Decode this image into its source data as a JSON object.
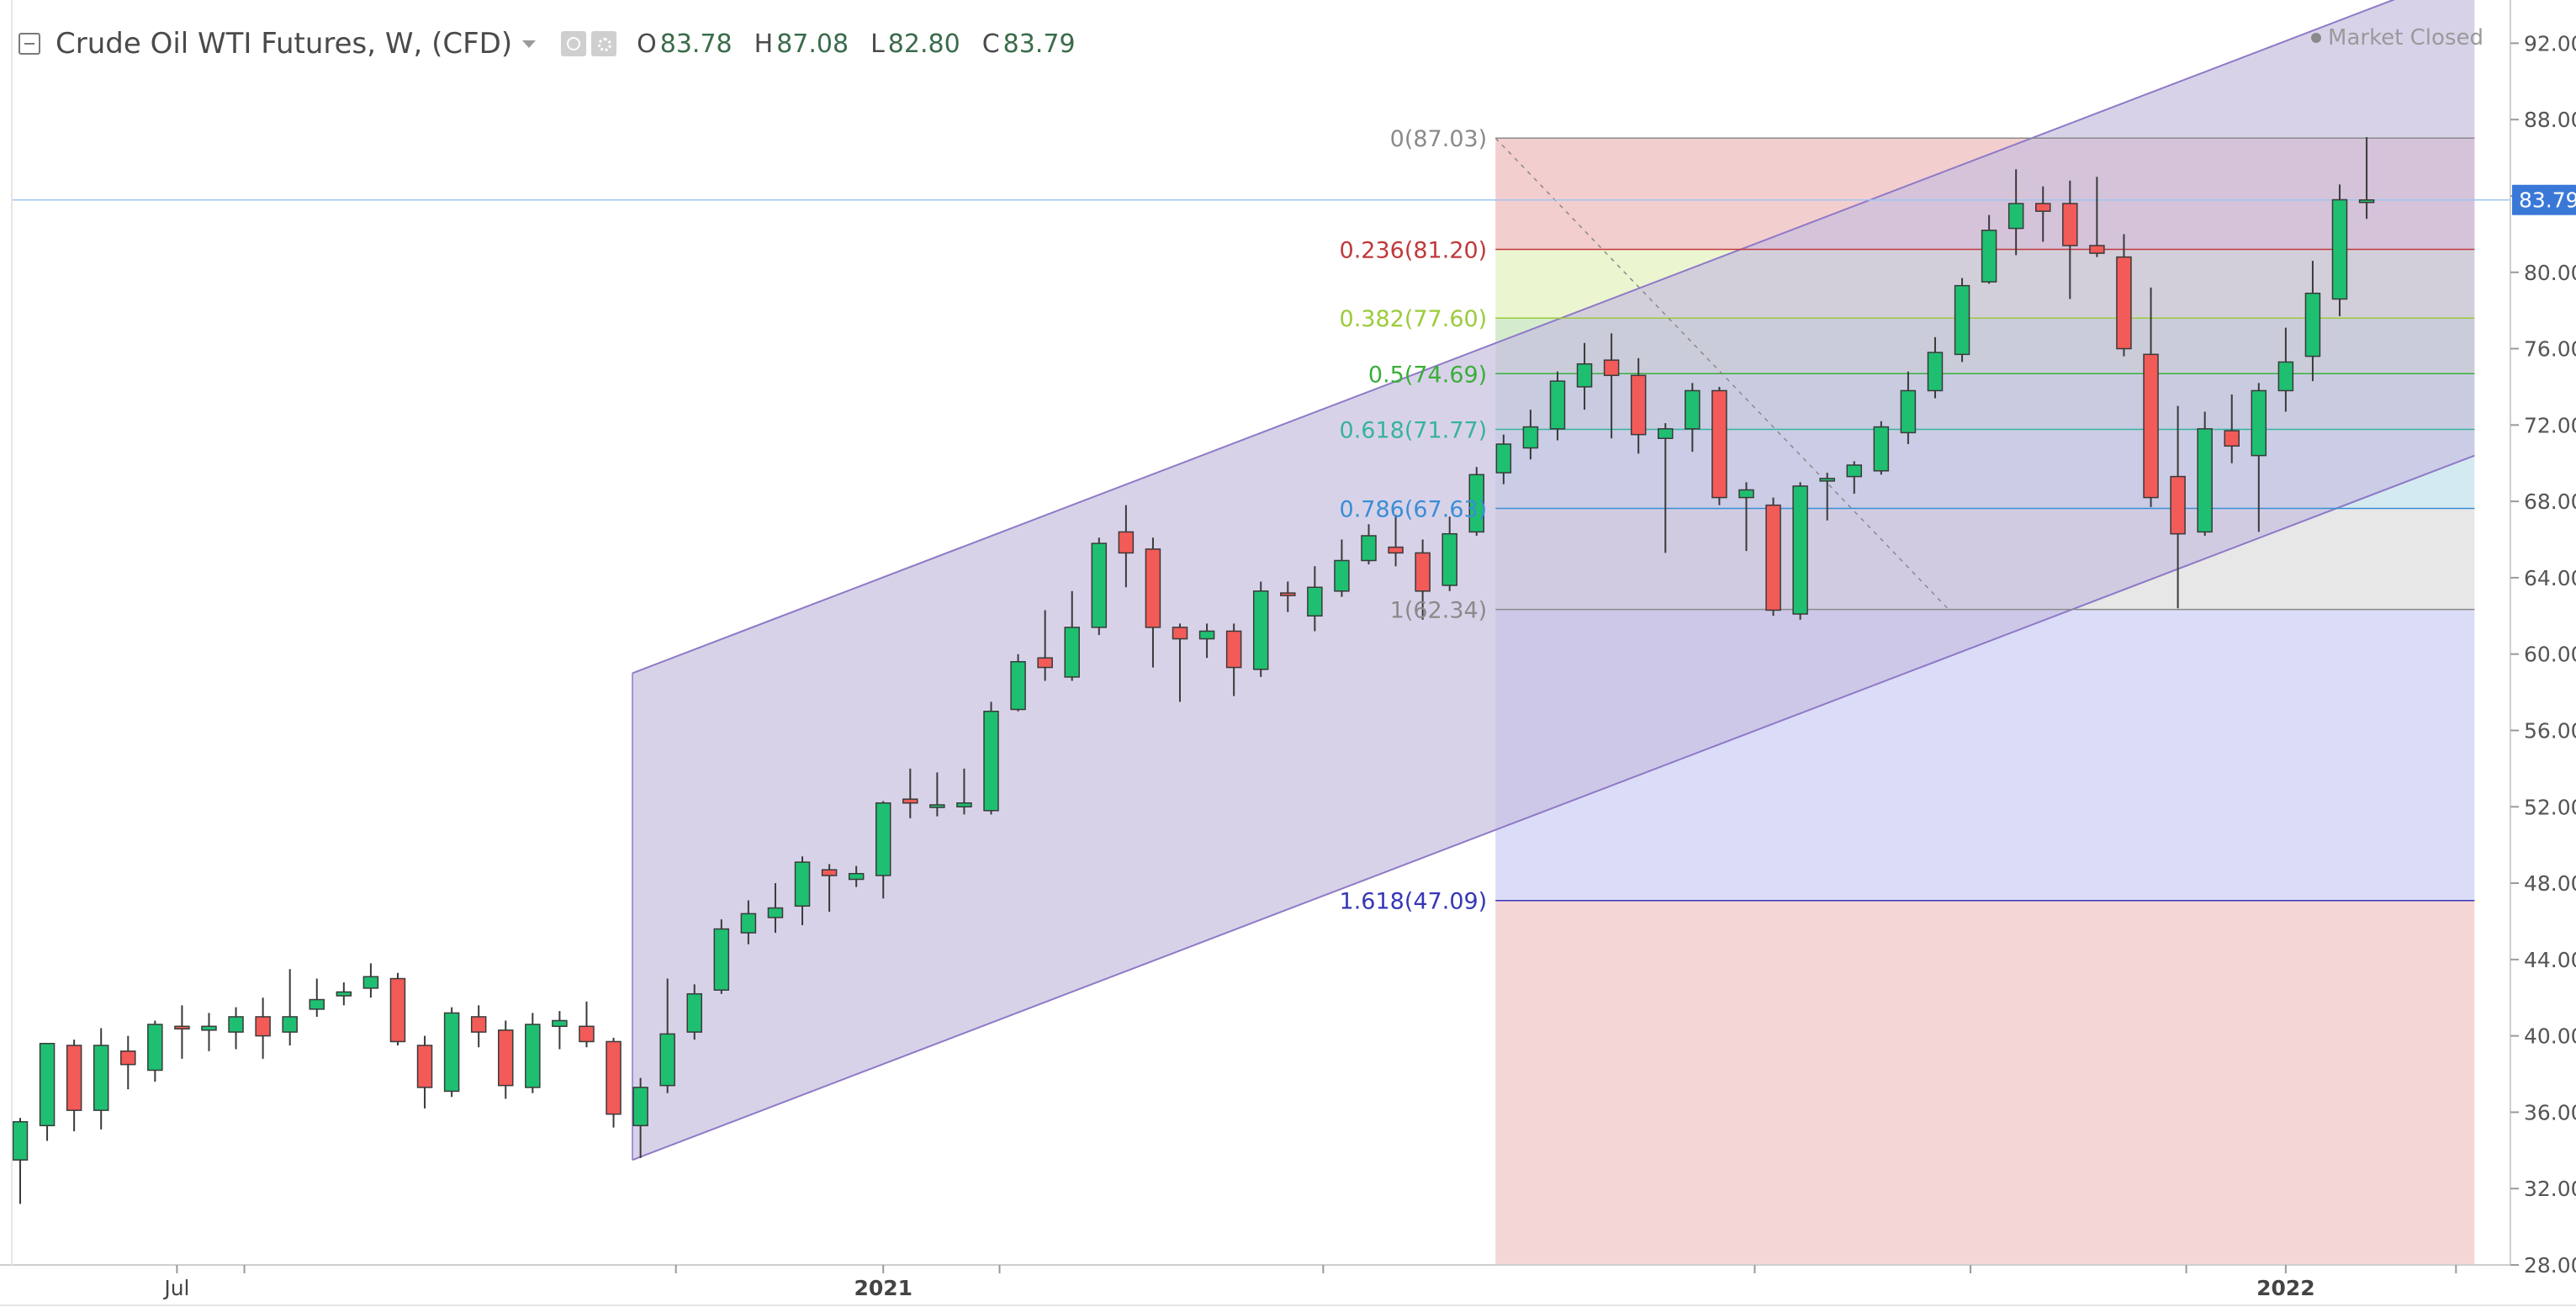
{
  "header": {
    "title": "Crude Oil WTI Futures, W, (CFD)",
    "icons": [
      "eye-icon",
      "gear-icon"
    ],
    "ohlc": [
      {
        "key": "O",
        "value": "83.78"
      },
      {
        "key": "H",
        "value": "87.08"
      },
      {
        "key": "L",
        "value": "82.80"
      },
      {
        "key": "C",
        "value": "83.79"
      }
    ],
    "status": "Market Closed"
  },
  "chart_data": {
    "type": "candlestick",
    "interval": "weekly",
    "ylim": [
      28,
      94
    ],
    "y_ticks": [
      "92.00",
      "88.00",
      "84.00",
      "80.00",
      "76.00",
      "72.00",
      "68.00",
      "64.00",
      "60.00",
      "56.00",
      "52.00",
      "48.00",
      "44.00",
      "40.00",
      "36.00",
      "32.00",
      "28.00"
    ],
    "y_tick_values": [
      92,
      88,
      84,
      80,
      76,
      72,
      68,
      64,
      60,
      56,
      52,
      48,
      44,
      40,
      36,
      32,
      28
    ],
    "x_labels": [
      {
        "label": "Jul",
        "bar": 6
      },
      {
        "label": "2021",
        "bar": 32
      },
      {
        "label": "2022",
        "bar": 84
      }
    ],
    "last_price": {
      "label": "83.79",
      "value": 83.79
    },
    "candles": [
      [
        33.5,
        35.5,
        31.2,
        35.7
      ],
      [
        35.3,
        39.6,
        34.5,
        39.5
      ],
      [
        39.5,
        36.1,
        35.0,
        39.8
      ],
      [
        36.1,
        39.5,
        35.1,
        40.4
      ],
      [
        39.2,
        38.5,
        37.2,
        40.0
      ],
      [
        38.2,
        40.6,
        37.6,
        40.8
      ],
      [
        40.5,
        40.4,
        38.8,
        41.6
      ],
      [
        40.3,
        40.5,
        39.2,
        41.2
      ],
      [
        40.2,
        41.0,
        39.3,
        41.5
      ],
      [
        41.0,
        40.0,
        38.8,
        42.0
      ],
      [
        40.2,
        41.0,
        39.5,
        43.5
      ],
      [
        41.4,
        41.9,
        41.0,
        43.0
      ],
      [
        42.1,
        42.3,
        41.6,
        42.8
      ],
      [
        42.5,
        43.1,
        42.0,
        43.8
      ],
      [
        43.0,
        39.7,
        39.5,
        43.3
      ],
      [
        39.5,
        37.3,
        36.2,
        40.0
      ],
      [
        37.1,
        41.2,
        36.8,
        41.5
      ],
      [
        41.0,
        40.2,
        39.4,
        41.6
      ],
      [
        40.3,
        37.4,
        36.7,
        40.8
      ],
      [
        37.3,
        40.6,
        37.0,
        41.2
      ],
      [
        40.5,
        40.8,
        39.3,
        41.3
      ],
      [
        40.5,
        39.7,
        39.4,
        41.8
      ],
      [
        39.7,
        35.9,
        35.2,
        39.9
      ],
      [
        35.3,
        37.3,
        33.6,
        37.8
      ],
      [
        37.4,
        40.1,
        37.0,
        43.0
      ],
      [
        40.2,
        42.2,
        39.8,
        42.7
      ],
      [
        42.4,
        45.6,
        42.2,
        46.1
      ],
      [
        45.4,
        46.4,
        44.8,
        47.1
      ],
      [
        46.2,
        46.7,
        45.4,
        48.0
      ],
      [
        46.8,
        49.1,
        45.8,
        49.4
      ],
      [
        48.7,
        48.4,
        46.5,
        49.0
      ],
      [
        48.2,
        48.5,
        47.8,
        48.9
      ],
      [
        48.4,
        52.2,
        47.2,
        52.3
      ],
      [
        52.4,
        52.2,
        51.4,
        54.0
      ],
      [
        52.0,
        52.1,
        51.5,
        53.8
      ],
      [
        52.0,
        52.2,
        51.6,
        54.0
      ],
      [
        51.8,
        57.0,
        51.6,
        57.5
      ],
      [
        57.1,
        59.6,
        57.0,
        60.0
      ],
      [
        59.8,
        59.3,
        58.6,
        62.3
      ],
      [
        58.8,
        61.4,
        58.6,
        63.3
      ],
      [
        61.4,
        65.8,
        61.0,
        66.1
      ],
      [
        66.4,
        65.3,
        63.5,
        67.8
      ],
      [
        65.5,
        61.4,
        59.3,
        66.1
      ],
      [
        61.4,
        60.8,
        57.5,
        61.6
      ],
      [
        60.8,
        61.2,
        59.8,
        61.6
      ],
      [
        61.2,
        59.3,
        57.8,
        61.6
      ],
      [
        59.2,
        63.3,
        58.8,
        63.8
      ],
      [
        63.2,
        63.1,
        62.2,
        63.8
      ],
      [
        62.0,
        63.5,
        61.2,
        64.6
      ],
      [
        63.3,
        64.9,
        63.0,
        66.0
      ],
      [
        64.9,
        66.2,
        64.7,
        66.8
      ],
      [
        65.6,
        65.3,
        64.6,
        67.3
      ],
      [
        65.3,
        63.3,
        61.8,
        66.0
      ],
      [
        63.6,
        66.3,
        63.3,
        67.2
      ],
      [
        66.4,
        69.4,
        66.2,
        69.8
      ],
      [
        69.5,
        71.0,
        68.9,
        71.5
      ],
      [
        70.8,
        71.9,
        70.2,
        72.8
      ],
      [
        71.8,
        74.3,
        71.2,
        74.8
      ],
      [
        74.0,
        75.2,
        72.8,
        76.3
      ],
      [
        75.4,
        74.6,
        71.3,
        76.8
      ],
      [
        74.6,
        71.5,
        70.5,
        75.5
      ],
      [
        71.3,
        71.8,
        65.3,
        72.1
      ],
      [
        71.8,
        73.8,
        70.6,
        74.2
      ],
      [
        73.8,
        68.2,
        67.8,
        74.0
      ],
      [
        68.2,
        68.6,
        65.4,
        69.0
      ],
      [
        67.8,
        62.3,
        62.0,
        68.2
      ],
      [
        62.1,
        68.8,
        61.8,
        69.0
      ],
      [
        69.2,
        69.2,
        67.0,
        69.5
      ],
      [
        69.3,
        69.9,
        68.4,
        70.1
      ],
      [
        69.6,
        71.9,
        69.4,
        72.2
      ],
      [
        71.6,
        73.8,
        71.0,
        74.8
      ],
      [
        73.8,
        75.8,
        73.4,
        76.6
      ],
      [
        75.7,
        79.3,
        75.3,
        79.7
      ],
      [
        79.5,
        82.2,
        79.4,
        83.0
      ],
      [
        82.3,
        83.6,
        80.9,
        85.4
      ],
      [
        83.6,
        83.2,
        81.6,
        84.5
      ],
      [
        83.6,
        81.4,
        78.6,
        84.8
      ],
      [
        81.4,
        81.0,
        80.8,
        85.0
      ],
      [
        80.8,
        76.0,
        75.6,
        82.0
      ],
      [
        75.7,
        68.2,
        67.7,
        79.2
      ],
      [
        69.3,
        66.3,
        62.4,
        73.0
      ],
      [
        66.4,
        71.8,
        66.2,
        72.7
      ],
      [
        71.7,
        70.9,
        70.0,
        73.6
      ],
      [
        70.4,
        73.8,
        66.4,
        74.2
      ],
      [
        73.8,
        75.3,
        72.7,
        77.1
      ],
      [
        75.6,
        78.9,
        74.3,
        80.6
      ],
      [
        78.6,
        83.8,
        77.7,
        84.6
      ],
      [
        83.78,
        83.79,
        82.8,
        87.08
      ]
    ],
    "channel": {
      "start_bar": 22.7,
      "lower_start": 33.5,
      "upper_start": 59.0,
      "end_bar": 91.0,
      "lower_end": 70.4,
      "upper_end": 95.9
    },
    "fibonacci": {
      "start_bar": 54.7,
      "end_bar": 91.0,
      "high": 87.03,
      "low": 62.34,
      "label_color": "#808080",
      "levels": [
        {
          "ratio": "0",
          "label": "0(87.03)",
          "value": 87.03,
          "color": "#8a8a8a",
          "fill": "#f1c6c6"
        },
        {
          "ratio": "0.236",
          "label": "0.236(81.20)",
          "value": 81.2,
          "color": "#c0393b",
          "fill": "#e8f3c8"
        },
        {
          "ratio": "0.382",
          "label": "0.382(77.60)",
          "value": 77.6,
          "color": "#9bcb3b",
          "fill": "#cde9c4"
        },
        {
          "ratio": "0.5",
          "label": "0.5(74.69)",
          "value": 74.69,
          "color": "#3aae3a",
          "fill": "#c4e6df"
        },
        {
          "ratio": "0.618",
          "label": "0.618(71.77)",
          "value": 71.77,
          "color": "#36b39e",
          "fill": "#cde6ef"
        },
        {
          "ratio": "0.786",
          "label": "0.786(67.63)",
          "value": 67.63,
          "color": "#3a8ed4",
          "fill": "#e3e3e3"
        },
        {
          "ratio": "1",
          "label": "1(62.34)",
          "value": 62.34,
          "color": "#8a8a8a",
          "fill": "#d5d6f7"
        },
        {
          "ratio": "1.618",
          "label": "1.618(47.09)",
          "value": 47.09,
          "color": "#3636b8",
          "fill": "#f3cfcf"
        }
      ]
    }
  },
  "colors": {
    "up": "#1fbf72",
    "down": "#f25b57",
    "wick": "#3a3a3a",
    "channel_fill": "#c8bfe0",
    "channel_line": "#8f79c7",
    "price_line": "#9fc4ef",
    "price_badge": "#3a78d8",
    "axis_text": "#555555",
    "grid": "#eeeeee"
  }
}
